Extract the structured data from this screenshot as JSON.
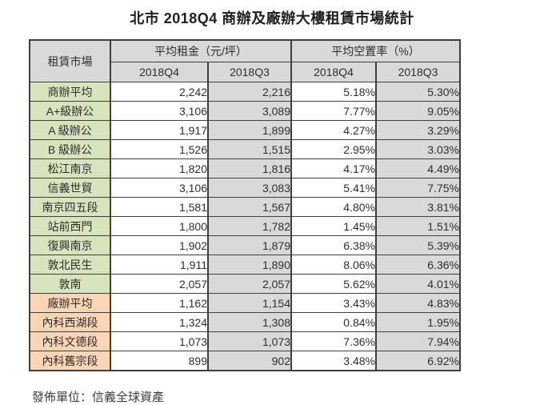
{
  "page_title": "北市 2018Q4 商辦及廠辦大樓租賃市場統計",
  "footer_label": "發佈單位：信義全球資產",
  "colors": {
    "header_bg": "#d9d9d9",
    "q3_column_bg": "#d9d9d9",
    "office_label_bg": "#d8e4bc",
    "factory_label_bg": "#fcd5b4",
    "border": "#3f3f3f"
  },
  "chart_data": {
    "type": "table",
    "title": "北市 2018Q4 商辦及廠辦大樓租賃市場統計",
    "corner_header": "租賃市場",
    "column_groups": [
      {
        "label": "平均租金（元/坪）",
        "subcolumns": [
          "2018Q4",
          "2018Q3"
        ]
      },
      {
        "label": "平均空置率（%）",
        "subcolumns": [
          "2018Q4",
          "2018Q3"
        ]
      }
    ],
    "rows": [
      {
        "label": "商辦平均",
        "section": "office",
        "values": [
          "2,242",
          "2,216",
          "5.18%",
          "5.30%"
        ]
      },
      {
        "label": "A+級辦公",
        "section": "office",
        "values": [
          "3,106",
          "3,089",
          "7.77%",
          "9.05%"
        ]
      },
      {
        "label": "A 級辦公",
        "section": "office",
        "values": [
          "1,917",
          "1,899",
          "4.27%",
          "3.29%"
        ]
      },
      {
        "label": "B 級辦公",
        "section": "office",
        "values": [
          "1,526",
          "1,515",
          "2.95%",
          "3.03%"
        ]
      },
      {
        "label": "松江南京",
        "section": "office",
        "values": [
          "1,820",
          "1,816",
          "4.17%",
          "4.49%"
        ]
      },
      {
        "label": "信義世貿",
        "section": "office",
        "values": [
          "3,106",
          "3,083",
          "5.41%",
          "7.75%"
        ]
      },
      {
        "label": "南京四五段",
        "section": "office",
        "values": [
          "1,581",
          "1,567",
          "4.80%",
          "3.81%"
        ]
      },
      {
        "label": "站前西門",
        "section": "office",
        "values": [
          "1,800",
          "1,782",
          "1.45%",
          "1.51%"
        ]
      },
      {
        "label": "復興南京",
        "section": "office",
        "values": [
          "1,902",
          "1,879",
          "6.38%",
          "5.39%"
        ]
      },
      {
        "label": "敦北民生",
        "section": "office",
        "values": [
          "1,911",
          "1,890",
          "8.06%",
          "6.36%"
        ]
      },
      {
        "label": "敦南",
        "section": "office",
        "values": [
          "2,057",
          "2,057",
          "5.62%",
          "4.01%"
        ]
      },
      {
        "label": "廠辦平均",
        "section": "factory",
        "values": [
          "1,162",
          "1,154",
          "3.43%",
          "4.83%"
        ]
      },
      {
        "label": "內科西湖段",
        "section": "factory",
        "values": [
          "1,324",
          "1,308",
          "0.84%",
          "1.95%"
        ]
      },
      {
        "label": "內科文德段",
        "section": "factory",
        "values": [
          "1,073",
          "1,073",
          "7.36%",
          "7.94%"
        ]
      },
      {
        "label": "內科舊宗段",
        "section": "factory",
        "values": [
          "899",
          "902",
          "3.48%",
          "6.92%"
        ]
      }
    ]
  }
}
